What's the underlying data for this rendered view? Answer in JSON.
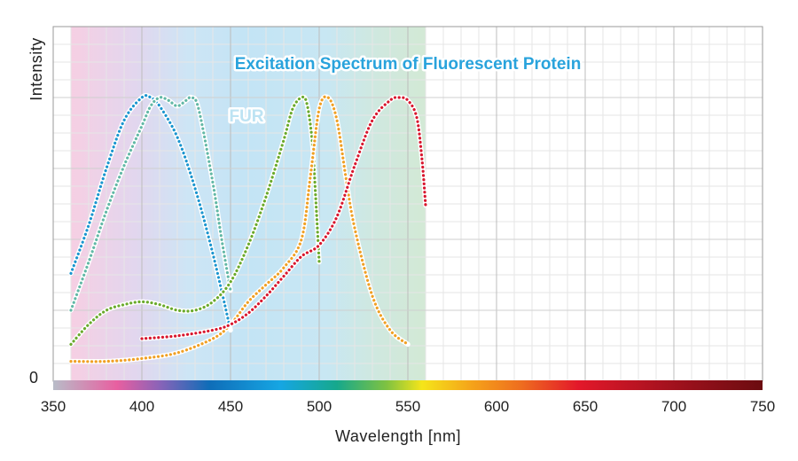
{
  "chart_data": {
    "type": "line",
    "title": "Excitation Spectrum of Fluorescent Protein",
    "annotation": "FUR",
    "xlabel": "Wavelength [nm]",
    "ylabel": "Intensity",
    "y_zero_label": "0",
    "xlim": [
      350,
      750
    ],
    "ylim": [
      0,
      1.25
    ],
    "x_ticks": [
      350,
      400,
      450,
      500,
      550,
      600,
      650,
      700,
      750
    ],
    "x_tick_labels": [
      "350",
      "400",
      "450",
      "500",
      "550",
      "600",
      "650",
      "700",
      "750"
    ],
    "shaded_band_nm": [
      360,
      560
    ],
    "series": [
      {
        "name": "blue",
        "color": "#1a95cf",
        "x": [
          360,
          370,
          380,
          390,
          400,
          405,
          410,
          420,
          430,
          440,
          450
        ],
        "y": [
          0.38,
          0.55,
          0.75,
          0.92,
          1.0,
          1.0,
          0.97,
          0.86,
          0.68,
          0.45,
          0.18
        ]
      },
      {
        "name": "teal",
        "color": "#62b8a6",
        "x": [
          360,
          370,
          380,
          390,
          400,
          405,
          410,
          415,
          420,
          425,
          428,
          432,
          440,
          445,
          450
        ],
        "y": [
          0.25,
          0.42,
          0.6,
          0.76,
          0.9,
          0.97,
          1.0,
          0.99,
          0.97,
          0.99,
          1.0,
          0.96,
          0.7,
          0.5,
          0.32
        ]
      },
      {
        "name": "green",
        "color": "#6aaa2c",
        "x": [
          360,
          370,
          380,
          390,
          400,
          410,
          420,
          430,
          440,
          450,
          460,
          470,
          480,
          485,
          490,
          493,
          496,
          498,
          500
        ],
        "y": [
          0.13,
          0.2,
          0.25,
          0.27,
          0.28,
          0.27,
          0.25,
          0.25,
          0.28,
          0.35,
          0.48,
          0.65,
          0.85,
          0.96,
          1.0,
          0.98,
          0.85,
          0.65,
          0.42
        ]
      },
      {
        "name": "orange",
        "color": "#f0a024",
        "x": [
          360,
          380,
          400,
          420,
          440,
          450,
          460,
          470,
          480,
          490,
          495,
          500,
          505,
          510,
          515,
          520,
          530,
          540,
          550
        ],
        "y": [
          0.07,
          0.07,
          0.08,
          0.1,
          0.15,
          0.2,
          0.28,
          0.34,
          0.4,
          0.5,
          0.72,
          0.96,
          1.0,
          0.92,
          0.72,
          0.54,
          0.3,
          0.18,
          0.13
        ]
      },
      {
        "name": "red",
        "color": "#d8172e",
        "x": [
          400,
          420,
          440,
          450,
          460,
          470,
          480,
          490,
          500,
          510,
          520,
          530,
          540,
          545,
          550,
          555,
          558,
          560
        ],
        "y": [
          0.15,
          0.16,
          0.18,
          0.2,
          0.24,
          0.3,
          0.37,
          0.44,
          0.48,
          0.58,
          0.76,
          0.92,
          0.99,
          1.0,
          0.99,
          0.93,
          0.78,
          0.62
        ]
      }
    ]
  }
}
